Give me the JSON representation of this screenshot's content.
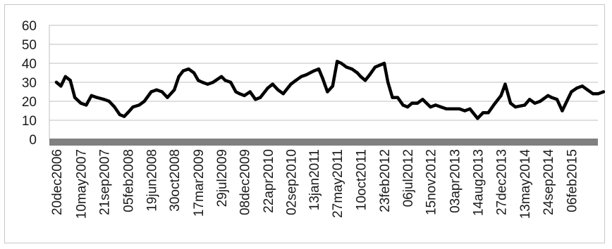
{
  "chart_data": {
    "type": "line",
    "title": "",
    "xlabel": "",
    "ylabel": "",
    "ylim": [
      0,
      60
    ],
    "y_ticks": [
      0,
      10,
      20,
      30,
      40,
      50,
      60
    ],
    "x_ticks": [
      "20dec2006",
      "10may2007",
      "21sep2007",
      "05feb2008",
      "19jun2008",
      "30oct2008",
      "17mar2009",
      "29jul2009",
      "08dec2009",
      "22apr2010",
      "02sep2010",
      "13jan2011",
      "27may2011",
      "10oct2011",
      "23feb2012",
      "06jul2012",
      "15nov2012",
      "03apr2013",
      "14aug2013",
      "27dec2013",
      "13may2014",
      "24sep2014",
      "06feb2015"
    ],
    "grid": true,
    "legend": "none",
    "line_color": "#000000",
    "axis_band_color": "#808080",
    "series": [
      {
        "x": [
          "20dec2006",
          "15jan2007",
          "10feb2007",
          "10mar2007",
          "05apr2007",
          "10may2007",
          "10jun2007",
          "10jul2007",
          "10aug2007",
          "21sep2007",
          "20oct2007",
          "20nov2007",
          "20dec2007",
          "15jan2008",
          "05feb2008",
          "05mar2008",
          "10apr2008",
          "10may2008",
          "19jun2008",
          "20jul2008",
          "20aug2008",
          "20sep2008",
          "30oct2008",
          "25nov2008",
          "20dec2008",
          "20jan2009",
          "20feb2009",
          "17mar2009",
          "10apr2009",
          "10may2009",
          "10jun2009",
          "29jul2009",
          "20aug2009",
          "20sep2009",
          "20oct2009",
          "10nov2009",
          "08dec2009",
          "10jan2010",
          "10feb2010",
          "10mar2010",
          "22apr2010",
          "20may2010",
          "20jun2010",
          "20jul2010",
          "02sep2010",
          "01oct2010",
          "01nov2010",
          "01dec2010",
          "13jan2011",
          "10feb2011",
          "05mar2011",
          "01apr2011",
          "01may2011",
          "27may2011",
          "20jun2011",
          "20jul2011",
          "20aug2011",
          "20sep2011",
          "10oct2011",
          "05nov2011",
          "01dec2011",
          "01jan2012",
          "23feb2012",
          "15mar2012",
          "10apr2012",
          "10may2012",
          "10jun2012",
          "06jul2012",
          "01aug2012",
          "01sep2012",
          "01oct2012",
          "15nov2012",
          "15dec2012",
          "15jan2013",
          "15feb2013",
          "03apr2013",
          "01may2013",
          "01jun2013",
          "01jul2013",
          "14aug2013",
          "15sep2013",
          "15oct2013",
          "15nov2013",
          "27dec2013",
          "20jan2014",
          "20feb2014",
          "20mar2014",
          "13may2014",
          "10jun2014",
          "10jul2014",
          "10aug2014",
          "24sep2014",
          "15oct2014",
          "15nov2014",
          "15dec2014",
          "06feb2015",
          "10mar2015",
          "10apr2015",
          "10may2015",
          "10jun2015",
          "10jul2015",
          "10aug2015"
        ],
        "values": [
          30,
          28,
          33,
          31,
          22,
          19,
          18,
          23,
          22,
          21,
          20,
          17,
          13,
          12,
          14,
          17,
          18,
          20,
          25,
          26,
          25,
          22,
          26,
          33,
          36,
          37,
          35,
          31,
          30,
          29,
          30,
          33,
          31,
          30,
          25,
          24,
          23,
          25,
          21,
          22,
          27,
          29,
          26,
          24,
          29,
          31,
          33,
          34,
          36,
          37,
          32,
          25,
          28,
          41,
          40,
          38,
          37,
          35,
          33,
          31,
          34,
          38,
          40,
          30,
          22,
          22,
          18,
          17,
          19,
          19,
          21,
          17,
          18,
          17,
          16,
          16,
          16,
          15,
          16,
          11,
          14,
          14,
          18,
          23,
          29,
          19,
          17,
          18,
          21,
          19,
          20,
          23,
          22,
          21,
          15,
          25,
          27,
          28,
          26,
          24,
          24,
          25
        ]
      }
    ]
  }
}
